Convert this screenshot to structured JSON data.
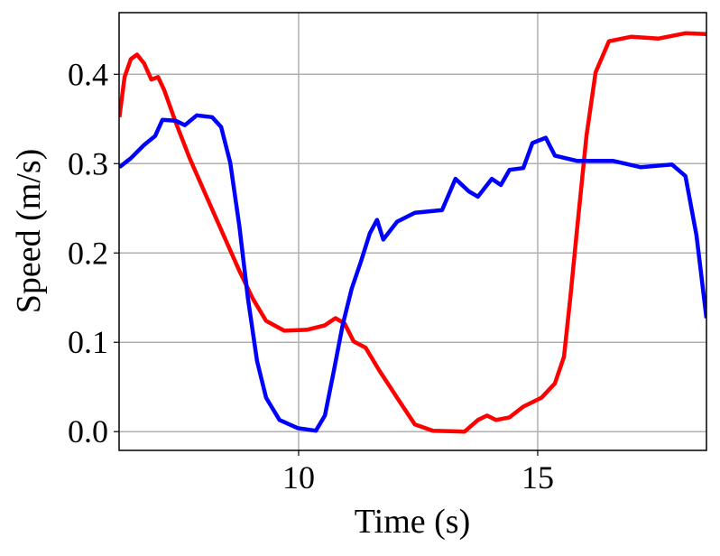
{
  "chart_data": {
    "type": "line",
    "x_label": "Time (s)",
    "y_label": "Speed (m/s)",
    "xlim": [
      6.245,
      18.53
    ],
    "ylim": [
      -0.021,
      0.469
    ],
    "xticks": [
      10,
      15
    ],
    "yticks": [
      {
        "value": 0,
        "label": "0.0"
      },
      0.1,
      0.2,
      0.3,
      0.4
    ],
    "grid": true,
    "series": [
      {
        "color": "#ff0000",
        "x": [
          6.25,
          6.36,
          6.49,
          6.62,
          6.77,
          6.92,
          7.06,
          7.19,
          7.43,
          7.72,
          8.09,
          8.47,
          8.76,
          9.04,
          9.32,
          9.7,
          10.17,
          10.55,
          10.77,
          10.96,
          11.15,
          11.4,
          11.68,
          12.06,
          12.43,
          12.81,
          13.47,
          13.75,
          13.94,
          14.13,
          14.41,
          14.7,
          15.08,
          15.36,
          15.55,
          15.68,
          15.83,
          16.02,
          16.21,
          16.49,
          16.96,
          17.53,
          18.09,
          18.53
        ],
        "values": [
          0.352,
          0.397,
          0.417,
          0.422,
          0.412,
          0.394,
          0.397,
          0.382,
          0.346,
          0.306,
          0.261,
          0.215,
          0.18,
          0.149,
          0.124,
          0.113,
          0.114,
          0.119,
          0.127,
          0.121,
          0.101,
          0.094,
          0.069,
          0.038,
          0.008,
          0.001,
          0,
          0.013,
          0.018,
          0.013,
          0.016,
          0.028,
          0.038,
          0.054,
          0.084,
          0.149,
          0.23,
          0.331,
          0.402,
          0.437,
          0.442,
          0.44,
          0.446,
          0.445
        ]
      },
      {
        "color": "#0000ff",
        "x": [
          6.25,
          6.49,
          6.77,
          7.0,
          7.15,
          7.43,
          7.62,
          7.87,
          8.19,
          8.38,
          8.57,
          8.76,
          8.94,
          9.13,
          9.32,
          9.6,
          9.98,
          10.36,
          10.55,
          10.74,
          10.92,
          11.11,
          11.3,
          11.49,
          11.64,
          11.77,
          12.06,
          12.43,
          13.0,
          13.28,
          13.56,
          13.75,
          14.04,
          14.23,
          14.41,
          14.7,
          14.89,
          15.17,
          15.36,
          15.83,
          16.58,
          17.15,
          17.81,
          18.09,
          18.32,
          18.53
        ],
        "values": [
          0.296,
          0.306,
          0.321,
          0.331,
          0.349,
          0.348,
          0.343,
          0.354,
          0.352,
          0.341,
          0.301,
          0.23,
          0.149,
          0.079,
          0.038,
          0.013,
          0.004,
          0.001,
          0.018,
          0.069,
          0.119,
          0.16,
          0.19,
          0.222,
          0.237,
          0.215,
          0.235,
          0.245,
          0.248,
          0.283,
          0.269,
          0.263,
          0.283,
          0.276,
          0.293,
          0.295,
          0.323,
          0.329,
          0.309,
          0.303,
          0.303,
          0.296,
          0.299,
          0.286,
          0.22,
          0.127
        ]
      }
    ]
  }
}
